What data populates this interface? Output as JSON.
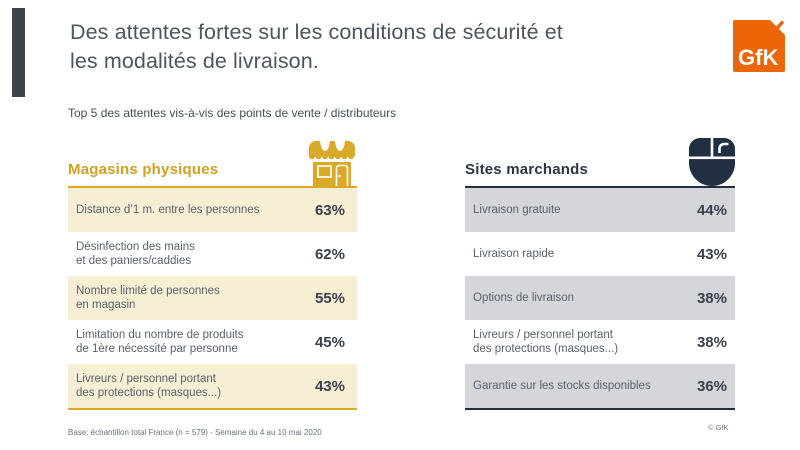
{
  "header": {
    "title_line1": "Des attentes fortes sur les conditions de sécurité et",
    "title_line2": "les modalités de livraison.",
    "subtitle": "Top 5 des attentes vis-à-vis des points de vente / distributeurs",
    "logo_text": "GfK"
  },
  "colors": {
    "gold_accent": "#d9a929",
    "cream_row": "#f6efd4",
    "navy_accent": "#222e41",
    "gray_row": "#d4d6da",
    "brand_orange": "#ec6608",
    "title_gray": "#4d565e"
  },
  "columns": [
    {
      "title": "Magasins physiques",
      "icon": "storefront-icon",
      "rows": [
        {
          "label_lines": [
            "Distance d’1 m. entre les personnes"
          ],
          "value": "63%",
          "shaded": true
        },
        {
          "label_lines": [
            "Désinfection des mains",
            "et des paniers/caddies"
          ],
          "value": "62%",
          "shaded": false
        },
        {
          "label_lines": [
            "Nombre limité de personnes",
            "en magasin"
          ],
          "value": "55%",
          "shaded": true
        },
        {
          "label_lines": [
            "Limitation du nombre de produits",
            "de 1ère nécessité par personne"
          ],
          "value": "45%",
          "shaded": false
        },
        {
          "label_lines": [
            "Livreurs / personnel portant",
            "des protections (masques...)"
          ],
          "value": "43%",
          "shaded": true
        }
      ]
    },
    {
      "title": "Sites marchands",
      "icon": "mouse-icon",
      "rows": [
        {
          "label_lines": [
            "Livraison gratuite"
          ],
          "value": "44%",
          "shaded": true
        },
        {
          "label_lines": [
            "Livraison rapide"
          ],
          "value": "43%",
          "shaded": false
        },
        {
          "label_lines": [
            "Options de livraison"
          ],
          "value": "38%",
          "shaded": true
        },
        {
          "label_lines": [
            "Livreurs / personnel portant",
            "des protections (masques...)"
          ],
          "value": "38%",
          "shaded": false
        },
        {
          "label_lines": [
            "Garantie sur les stocks disponibles"
          ],
          "value": "36%",
          "shaded": true
        }
      ]
    }
  ],
  "footer": {
    "note": "Base: échantillon total France (n = 579) - Semaine du 4 au 10 mai 2020",
    "copyright": "© GfK"
  },
  "chart_data": [
    {
      "type": "table",
      "title": "Magasins physiques",
      "categories": [
        "Distance d’1 m. entre les personnes",
        "Désinfection des mains et des paniers/caddies",
        "Nombre limité de personnes en magasin",
        "Limitation du nombre de produits de 1ère nécessité par personne",
        "Livreurs / personnel portant des protections (masques...)"
      ],
      "values": [
        63,
        62,
        55,
        45,
        43
      ],
      "unit": "%"
    },
    {
      "type": "table",
      "title": "Sites marchands",
      "categories": [
        "Livraison gratuite",
        "Livraison rapide",
        "Options de livraison",
        "Livreurs / personnel portant des protections (masques...)",
        "Garantie sur les stocks disponibles"
      ],
      "values": [
        44,
        43,
        38,
        38,
        36
      ],
      "unit": "%"
    }
  ]
}
